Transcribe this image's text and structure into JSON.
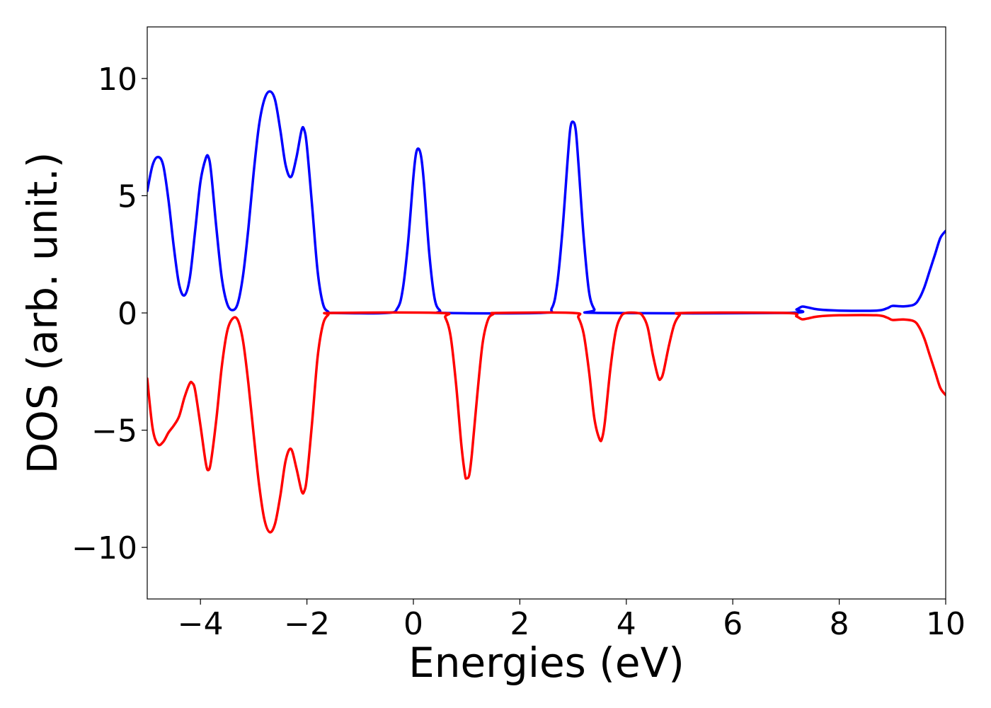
{
  "chart_data": {
    "type": "line",
    "title": "",
    "xlabel": "Energies (eV)",
    "ylabel": "DOS (arb. unit.)",
    "xlim": [
      -5,
      10
    ],
    "ylim": [
      -12.2,
      12.2
    ],
    "xticks": [
      -4,
      -2,
      0,
      2,
      4,
      6,
      8,
      10
    ],
    "xtick_labels": [
      "−4",
      "−2",
      "0",
      "2",
      "4",
      "6",
      "8",
      "10"
    ],
    "yticks": [
      -10,
      -5,
      0,
      5,
      10
    ],
    "ytick_labels": [
      "−10",
      "−5",
      "0",
      "5",
      "10"
    ],
    "grid": false,
    "legend": "none",
    "series": [
      {
        "color": "#0000ff",
        "points": [
          [
            -5.0,
            5.2
          ],
          [
            -4.9,
            6.3
          ],
          [
            -4.8,
            6.65
          ],
          [
            -4.7,
            6.3
          ],
          [
            -4.6,
            4.8
          ],
          [
            -4.5,
            2.8
          ],
          [
            -4.4,
            1.2
          ],
          [
            -4.3,
            0.75
          ],
          [
            -4.2,
            1.5
          ],
          [
            -4.1,
            3.5
          ],
          [
            -4.0,
            5.6
          ],
          [
            -3.9,
            6.6
          ],
          [
            -3.85,
            6.65
          ],
          [
            -3.8,
            6.0
          ],
          [
            -3.7,
            3.6
          ],
          [
            -3.6,
            1.5
          ],
          [
            -3.5,
            0.4
          ],
          [
            -3.4,
            0.12
          ],
          [
            -3.3,
            0.4
          ],
          [
            -3.2,
            1.6
          ],
          [
            -3.1,
            3.6
          ],
          [
            -3.0,
            6.0
          ],
          [
            -2.9,
            8.0
          ],
          [
            -2.8,
            9.1
          ],
          [
            -2.7,
            9.45
          ],
          [
            -2.6,
            9.1
          ],
          [
            -2.5,
            7.8
          ],
          [
            -2.4,
            6.3
          ],
          [
            -2.3,
            5.8
          ],
          [
            -2.2,
            6.6
          ],
          [
            -2.1,
            7.8
          ],
          [
            -2.05,
            7.8
          ],
          [
            -2.0,
            7.1
          ],
          [
            -1.9,
            4.5
          ],
          [
            -1.8,
            1.8
          ],
          [
            -1.7,
            0.4
          ],
          [
            -1.6,
            0.05
          ],
          [
            -1.5,
            0.0
          ],
          [
            -0.5,
            0.0
          ],
          [
            -0.3,
            0.2
          ],
          [
            -0.2,
            1.0
          ],
          [
            -0.1,
            3.0
          ],
          [
            0.0,
            5.8
          ],
          [
            0.05,
            6.8
          ],
          [
            0.1,
            7.0
          ],
          [
            0.15,
            6.6
          ],
          [
            0.2,
            5.5
          ],
          [
            0.3,
            2.5
          ],
          [
            0.4,
            0.6
          ],
          [
            0.5,
            0.1
          ],
          [
            0.6,
            0.0
          ],
          [
            2.4,
            0.0
          ],
          [
            2.6,
            0.2
          ],
          [
            2.7,
            1.2
          ],
          [
            2.8,
            3.5
          ],
          [
            2.9,
            6.6
          ],
          [
            2.95,
            7.9
          ],
          [
            3.0,
            8.15
          ],
          [
            3.05,
            7.8
          ],
          [
            3.1,
            6.4
          ],
          [
            3.2,
            3.2
          ],
          [
            3.3,
            0.9
          ],
          [
            3.4,
            0.15
          ],
          [
            3.5,
            0.0
          ],
          [
            7.0,
            0.0
          ],
          [
            7.2,
            0.15
          ],
          [
            7.3,
            0.27
          ],
          [
            7.4,
            0.24
          ],
          [
            7.6,
            0.15
          ],
          [
            8.0,
            0.1
          ],
          [
            8.7,
            0.1
          ],
          [
            8.9,
            0.2
          ],
          [
            9.0,
            0.3
          ],
          [
            9.2,
            0.28
          ],
          [
            9.4,
            0.35
          ],
          [
            9.5,
            0.6
          ],
          [
            9.6,
            1.1
          ],
          [
            9.7,
            1.8
          ],
          [
            9.8,
            2.5
          ],
          [
            9.9,
            3.2
          ],
          [
            10.0,
            3.5
          ]
        ]
      },
      {
        "color": "#ff0000",
        "points": [
          [
            -5.0,
            -2.8
          ],
          [
            -4.9,
            -4.9
          ],
          [
            -4.8,
            -5.6
          ],
          [
            -4.7,
            -5.5
          ],
          [
            -4.6,
            -5.1
          ],
          [
            -4.5,
            -4.8
          ],
          [
            -4.4,
            -4.4
          ],
          [
            -4.3,
            -3.6
          ],
          [
            -4.2,
            -3.0
          ],
          [
            -4.15,
            -3.0
          ],
          [
            -4.1,
            -3.3
          ],
          [
            -4.0,
            -4.8
          ],
          [
            -3.9,
            -6.4
          ],
          [
            -3.85,
            -6.7
          ],
          [
            -3.8,
            -6.3
          ],
          [
            -3.7,
            -4.5
          ],
          [
            -3.6,
            -2.3
          ],
          [
            -3.5,
            -0.8
          ],
          [
            -3.4,
            -0.25
          ],
          [
            -3.3,
            -0.3
          ],
          [
            -3.2,
            -1.2
          ],
          [
            -3.1,
            -3.0
          ],
          [
            -3.0,
            -5.2
          ],
          [
            -2.9,
            -7.3
          ],
          [
            -2.8,
            -8.8
          ],
          [
            -2.7,
            -9.35
          ],
          [
            -2.6,
            -9.0
          ],
          [
            -2.5,
            -7.8
          ],
          [
            -2.4,
            -6.3
          ],
          [
            -2.3,
            -5.8
          ],
          [
            -2.2,
            -6.6
          ],
          [
            -2.1,
            -7.6
          ],
          [
            -2.05,
            -7.6
          ],
          [
            -2.0,
            -7.0
          ],
          [
            -1.9,
            -4.6
          ],
          [
            -1.8,
            -1.9
          ],
          [
            -1.7,
            -0.5
          ],
          [
            -1.6,
            -0.08
          ],
          [
            -1.5,
            0.0
          ],
          [
            0.5,
            0.0
          ],
          [
            0.6,
            -0.2
          ],
          [
            0.7,
            -1.0
          ],
          [
            0.8,
            -3.0
          ],
          [
            0.9,
            -5.6
          ],
          [
            0.97,
            -6.9
          ],
          [
            1.0,
            -7.05
          ],
          [
            1.05,
            -6.9
          ],
          [
            1.1,
            -6.0
          ],
          [
            1.2,
            -3.5
          ],
          [
            1.3,
            -1.3
          ],
          [
            1.4,
            -0.3
          ],
          [
            1.5,
            -0.05
          ],
          [
            1.6,
            0.0
          ],
          [
            3.0,
            0.0
          ],
          [
            3.1,
            -0.2
          ],
          [
            3.2,
            -0.9
          ],
          [
            3.3,
            -2.5
          ],
          [
            3.4,
            -4.5
          ],
          [
            3.5,
            -5.4
          ],
          [
            3.55,
            -5.3
          ],
          [
            3.6,
            -4.6
          ],
          [
            3.7,
            -2.4
          ],
          [
            3.8,
            -0.8
          ],
          [
            3.9,
            -0.15
          ],
          [
            4.0,
            0.0
          ],
          [
            4.2,
            0.0
          ],
          [
            4.3,
            -0.1
          ],
          [
            4.4,
            -0.6
          ],
          [
            4.5,
            -1.8
          ],
          [
            4.6,
            -2.75
          ],
          [
            4.65,
            -2.8
          ],
          [
            4.7,
            -2.5
          ],
          [
            4.8,
            -1.4
          ],
          [
            4.9,
            -0.5
          ],
          [
            5.0,
            -0.1
          ],
          [
            5.1,
            0.0
          ],
          [
            7.0,
            0.0
          ],
          [
            7.2,
            -0.15
          ],
          [
            7.3,
            -0.27
          ],
          [
            7.4,
            -0.24
          ],
          [
            7.6,
            -0.15
          ],
          [
            8.0,
            -0.1
          ],
          [
            8.7,
            -0.1
          ],
          [
            8.9,
            -0.2
          ],
          [
            9.0,
            -0.3
          ],
          [
            9.2,
            -0.28
          ],
          [
            9.4,
            -0.35
          ],
          [
            9.5,
            -0.6
          ],
          [
            9.6,
            -1.1
          ],
          [
            9.7,
            -1.8
          ],
          [
            9.8,
            -2.5
          ],
          [
            9.9,
            -3.2
          ],
          [
            10.0,
            -3.5
          ]
        ]
      }
    ]
  }
}
